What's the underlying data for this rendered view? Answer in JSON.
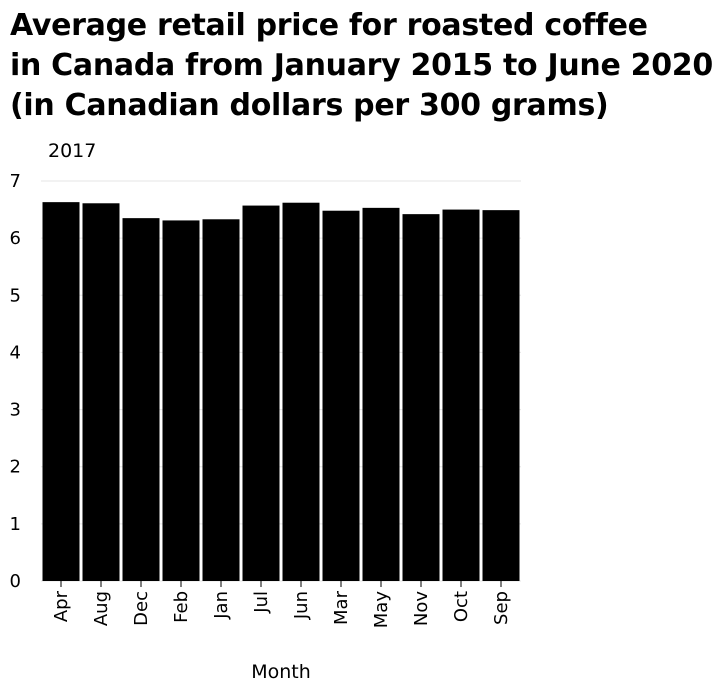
{
  "chart_data": {
    "type": "bar",
    "title_lines": [
      "Average retail price for roasted coffee",
      "in Canada from January 2015 to June 2020",
      "(in Canadian dollars per 300 grams)"
    ],
    "y_axis_caption": "2017",
    "xlabel": "Month",
    "ylabel": "",
    "categories": [
      "Apr",
      "Aug",
      "Dec",
      "Feb",
      "Jan",
      "Jul",
      "Jun",
      "Mar",
      "May",
      "Nov",
      "Oct",
      "Sep"
    ],
    "values": [
      6.63,
      6.61,
      6.35,
      6.31,
      6.33,
      6.57,
      6.62,
      6.48,
      6.53,
      6.42,
      6.5,
      6.49
    ],
    "ylim": [
      0,
      7
    ],
    "yticks": [
      0,
      1,
      2,
      3,
      4,
      5,
      6,
      7
    ],
    "grid": "horizontal",
    "bar_color": "#000000",
    "grid_color": "#e6e6e6"
  }
}
